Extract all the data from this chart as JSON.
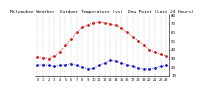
{
  "title": "Milwaukee Weather  Outdoor Temperature (vs)  Dew Point (Last 24 Hours)",
  "temp": [
    32,
    31,
    30,
    33,
    38,
    45,
    52,
    60,
    66,
    69,
    71,
    72,
    71,
    70,
    68,
    65,
    60,
    55,
    50,
    45,
    40,
    37,
    35,
    33
  ],
  "dewpoint": [
    22,
    23,
    22,
    21,
    22,
    23,
    24,
    22,
    20,
    18,
    19,
    22,
    25,
    28,
    27,
    25,
    23,
    21,
    19,
    18,
    18,
    19,
    21,
    22
  ],
  "temp_color": "#dd0000",
  "dew_color": "#0000cc",
  "bg_color": "#ffffff",
  "ylim": [
    10,
    80
  ],
  "ytick_labels": [
    "10",
    "20",
    "30",
    "40",
    "50",
    "60",
    "70",
    "80"
  ],
  "ytick_vals": [
    10,
    20,
    30,
    40,
    50,
    60,
    70,
    80
  ],
  "n_points": 24,
  "grid_color": "#aaaaaa",
  "title_fontsize": 3.2,
  "tick_fontsize": 2.8,
  "line_width": 0.6,
  "marker_size": 0.9
}
